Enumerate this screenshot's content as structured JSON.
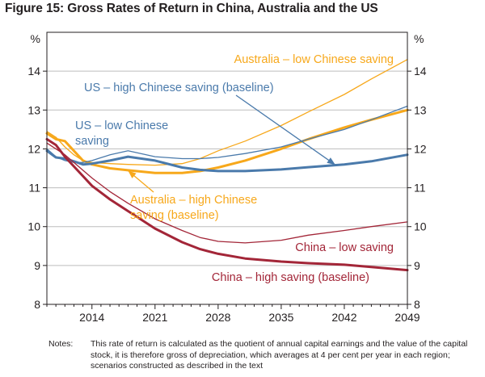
{
  "figure": {
    "title": "Figure 15: Gross Rates of Return in China, Australia and the US"
  },
  "notes": {
    "label": "Notes:",
    "text": "This rate of return is calculated as the quotient of annual capital earnings and the value of the capital stock, it is therefore gross of depreciation, which averages at 4 per cent per year in each region; scenarios constructed as described in the text"
  },
  "chart_data": {
    "type": "line",
    "title": "Gross Rates of Return in China, Australia and the US",
    "xlabel": "",
    "ylabel": "%",
    "y2label": "%",
    "xlim": [
      2009,
      2049
    ],
    "ylim": [
      8,
      15
    ],
    "x_ticks": [
      2014,
      2021,
      2028,
      2035,
      2042,
      2049
    ],
    "y_ticks": [
      8,
      9,
      10,
      11,
      12,
      13,
      14
    ],
    "grid": "horizontal",
    "legend": "direct labels on lines",
    "colors": {
      "australia": "#f7a81b",
      "us": "#4a7aab",
      "china": "#a32638"
    },
    "series": [
      {
        "key": "aus_low",
        "name": "Australia – low Chinese saving",
        "color": "#f7a81b",
        "width": 1.3,
        "x": [
          2009,
          2010,
          2011,
          2012,
          2013,
          2014,
          2016,
          2018,
          2021,
          2024,
          2026,
          2028,
          2031,
          2035,
          2038,
          2042,
          2045,
          2049
        ],
        "y": [
          12.45,
          12.3,
          12.05,
          11.85,
          11.7,
          11.65,
          11.62,
          11.6,
          11.58,
          11.62,
          11.75,
          11.95,
          12.2,
          12.6,
          12.95,
          13.4,
          13.8,
          14.3
        ]
      },
      {
        "key": "aus_high",
        "name": "Australia – high Chinese saving (baseline)",
        "color": "#f7a81b",
        "width": 3,
        "x": [
          2009,
          2010,
          2011,
          2012,
          2013,
          2014,
          2016,
          2018,
          2021,
          2024,
          2026,
          2028,
          2031,
          2035,
          2038,
          2042,
          2045,
          2049
        ],
        "y": [
          12.4,
          12.25,
          12.2,
          11.95,
          11.7,
          11.6,
          11.5,
          11.45,
          11.38,
          11.38,
          11.43,
          11.52,
          11.7,
          12.0,
          12.25,
          12.55,
          12.75,
          13.0
        ]
      },
      {
        "key": "us_low",
        "name": "US – low Chinese saving",
        "color": "#4a7aab",
        "width": 1.3,
        "x": [
          2009,
          2010,
          2011,
          2012,
          2013,
          2014,
          2016,
          2018,
          2021,
          2024,
          2026,
          2028,
          2031,
          2035,
          2038,
          2042,
          2045,
          2049
        ],
        "y": [
          12.0,
          11.8,
          11.7,
          11.65,
          11.65,
          11.7,
          11.85,
          11.95,
          11.8,
          11.75,
          11.75,
          11.78,
          11.88,
          12.05,
          12.25,
          12.5,
          12.75,
          13.1
        ]
      },
      {
        "key": "us_high",
        "name": "US – high Chinese saving (baseline)",
        "color": "#4a7aab",
        "width": 3,
        "x": [
          2009,
          2010,
          2011,
          2012,
          2013,
          2014,
          2016,
          2018,
          2021,
          2024,
          2026,
          2028,
          2031,
          2035,
          2038,
          2042,
          2045,
          2049
        ],
        "y": [
          11.95,
          11.78,
          11.75,
          11.68,
          11.6,
          11.62,
          11.7,
          11.8,
          11.7,
          11.52,
          11.46,
          11.43,
          11.43,
          11.47,
          11.53,
          11.6,
          11.68,
          11.85
        ]
      },
      {
        "key": "china_low",
        "name": "China – low saving",
        "color": "#a32638",
        "width": 1.3,
        "x": [
          2009,
          2010,
          2011,
          2012,
          2013,
          2014,
          2016,
          2018,
          2021,
          2024,
          2026,
          2028,
          2031,
          2035,
          2038,
          2042,
          2045,
          2049
        ],
        "y": [
          12.15,
          12.0,
          11.85,
          11.65,
          11.45,
          11.25,
          10.9,
          10.6,
          10.2,
          9.9,
          9.72,
          9.62,
          9.58,
          9.65,
          9.78,
          9.9,
          10.0,
          10.12
        ]
      },
      {
        "key": "china_high",
        "name": "China – high saving (baseline)",
        "color": "#a32638",
        "width": 3,
        "x": [
          2009,
          2010,
          2011,
          2012,
          2013,
          2014,
          2016,
          2018,
          2021,
          2024,
          2026,
          2028,
          2031,
          2035,
          2038,
          2042,
          2045,
          2049
        ],
        "y": [
          12.25,
          12.1,
          11.8,
          11.55,
          11.3,
          11.05,
          10.7,
          10.4,
          9.95,
          9.6,
          9.42,
          9.3,
          9.18,
          9.1,
          9.06,
          9.02,
          8.96,
          8.88
        ]
      }
    ],
    "annotations": [
      {
        "text": "Australia – low Chinese saving",
        "color": "#f7a81b"
      },
      {
        "text": "US – high Chinese saving (baseline)",
        "color": "#4a7aab"
      },
      {
        "text": "US – low Chinese saving",
        "color": "#4a7aab"
      },
      {
        "text": "Australia – high Chinese saving (baseline)",
        "color": "#f7a81b"
      },
      {
        "text": "China – low saving",
        "color": "#a32638"
      },
      {
        "text": "China – high saving (baseline)",
        "color": "#a32638"
      }
    ]
  }
}
